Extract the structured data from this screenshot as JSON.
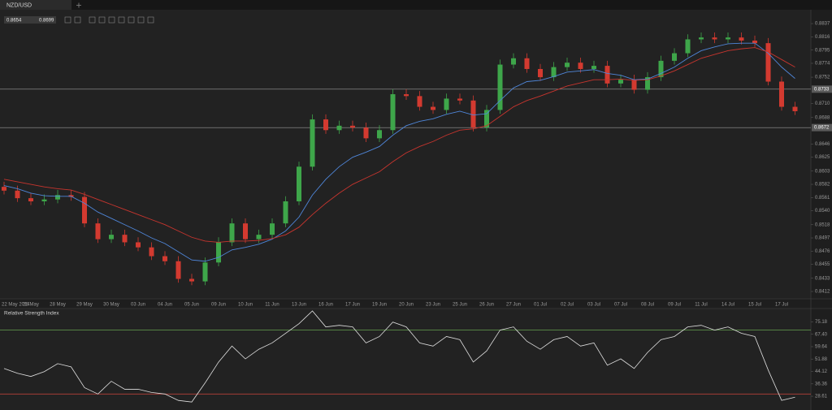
{
  "tab": "NZD/USD",
  "quote": {
    "bid": 0.8654,
    "ask": 0.8699
  },
  "chart_data": [
    {
      "type": "candlestick",
      "categories": [
        "22 May 2014",
        null,
        "26 May",
        null,
        "28 May",
        null,
        "29 May",
        null,
        "30 May",
        null,
        "03 Jun",
        null,
        "04 Jun",
        null,
        "05 Jun",
        null,
        "09 Jun",
        null,
        "10 Jun",
        null,
        "11 Jun",
        null,
        "13 Jun",
        null,
        "16 Jun",
        null,
        "17 Jun",
        null,
        "19 Jun",
        null,
        "20 Jun",
        null,
        "23 Jun",
        null,
        "25 Jun",
        null,
        "26 Jun",
        null,
        "27 Jun",
        null,
        "01 Jul",
        null,
        "02 Jul",
        null,
        "03 Jul",
        null,
        "07 Jul",
        null,
        "08 Jul",
        null,
        "09 Jul",
        null,
        "11 Jul",
        null,
        "14 Jul",
        null,
        "15 Jul",
        null,
        "17 Jul",
        null
      ],
      "open": [
        0.8578,
        0.8572,
        0.856,
        0.8555,
        0.8558,
        0.8565,
        0.8562,
        0.852,
        0.8495,
        0.8502,
        0.849,
        0.8482,
        0.8468,
        0.846,
        0.8432,
        0.8428,
        0.8458,
        0.849,
        0.852,
        0.8495,
        0.8502,
        0.852,
        0.8555,
        0.861,
        0.8685,
        0.8668,
        0.8675,
        0.8672,
        0.8655,
        0.8668,
        0.8725,
        0.8722,
        0.8705,
        0.87,
        0.8718,
        0.8715,
        0.8672,
        0.87,
        0.8772,
        0.8782,
        0.8765,
        0.8752,
        0.8768,
        0.8775,
        0.8765,
        0.877,
        0.8742,
        0.8748,
        0.8732,
        0.8752,
        0.8778,
        0.879,
        0.8812,
        0.8815,
        0.8812,
        0.8815,
        0.881,
        0.8806,
        0.8745,
        0.8705
      ],
      "high": [
        0.8586,
        0.858,
        0.8568,
        0.8566,
        0.8573,
        0.8573,
        0.857,
        0.8528,
        0.851,
        0.851,
        0.8498,
        0.849,
        0.8476,
        0.8468,
        0.844,
        0.8466,
        0.8498,
        0.8528,
        0.8528,
        0.851,
        0.8528,
        0.8563,
        0.8618,
        0.8693,
        0.8693,
        0.8683,
        0.8683,
        0.868,
        0.8676,
        0.8733,
        0.8733,
        0.873,
        0.8713,
        0.8726,
        0.8726,
        0.8723,
        0.8708,
        0.878,
        0.879,
        0.879,
        0.8773,
        0.8776,
        0.8783,
        0.8783,
        0.8778,
        0.8778,
        0.8756,
        0.8756,
        0.876,
        0.8786,
        0.8798,
        0.882,
        0.8823,
        0.8823,
        0.8823,
        0.8823,
        0.8818,
        0.8814,
        0.8753,
        0.8713
      ],
      "low": [
        0.8566,
        0.8554,
        0.8549,
        0.8549,
        0.8552,
        0.8556,
        0.8514,
        0.8489,
        0.8489,
        0.8484,
        0.8476,
        0.8462,
        0.8454,
        0.8426,
        0.8422,
        0.8422,
        0.8452,
        0.8484,
        0.8489,
        0.8489,
        0.8496,
        0.8514,
        0.8549,
        0.8604,
        0.8662,
        0.8662,
        0.8666,
        0.8649,
        0.8649,
        0.8662,
        0.8716,
        0.8699,
        0.8694,
        0.8694,
        0.8709,
        0.8666,
        0.8666,
        0.8694,
        0.8766,
        0.8759,
        0.8746,
        0.8746,
        0.8762,
        0.8759,
        0.8759,
        0.8736,
        0.8736,
        0.8726,
        0.8726,
        0.8746,
        0.8772,
        0.8784,
        0.8806,
        0.8806,
        0.8806,
        0.8804,
        0.88,
        0.8739,
        0.8699,
        0.8692
      ],
      "close": [
        0.8572,
        0.856,
        0.8555,
        0.8558,
        0.8565,
        0.8562,
        0.852,
        0.8495,
        0.8502,
        0.849,
        0.8482,
        0.8468,
        0.846,
        0.8432,
        0.8428,
        0.8458,
        0.849,
        0.852,
        0.8495,
        0.8502,
        0.852,
        0.8555,
        0.861,
        0.8685,
        0.8668,
        0.8675,
        0.8672,
        0.8655,
        0.8668,
        0.8725,
        0.8722,
        0.8705,
        0.87,
        0.8718,
        0.8715,
        0.8672,
        0.87,
        0.8772,
        0.8782,
        0.8765,
        0.8752,
        0.8768,
        0.8775,
        0.8765,
        0.877,
        0.8742,
        0.8748,
        0.8732,
        0.8752,
        0.8778,
        0.879,
        0.8812,
        0.8815,
        0.8812,
        0.8815,
        0.881,
        0.8806,
        0.8745,
        0.8705,
        0.8698
      ],
      "up_color": "#3ea64a",
      "down_color": "#d33a30",
      "lines": [
        {
          "color": "#4f86d9",
          "values": [
            0.858,
            0.8575,
            0.8568,
            0.8564,
            0.8563,
            0.8563,
            0.8552,
            0.8538,
            0.8528,
            0.8518,
            0.8508,
            0.8497,
            0.8488,
            0.8475,
            0.8462,
            0.846,
            0.8466,
            0.8478,
            0.8482,
            0.8487,
            0.8495,
            0.8508,
            0.853,
            0.8565,
            0.859,
            0.861,
            0.8625,
            0.8633,
            0.8642,
            0.866,
            0.8675,
            0.8682,
            0.8686,
            0.8693,
            0.8698,
            0.8692,
            0.8694,
            0.8715,
            0.8735,
            0.8745,
            0.8747,
            0.8753,
            0.876,
            0.8762,
            0.8764,
            0.8758,
            0.8755,
            0.8748,
            0.8749,
            0.8758,
            0.8768,
            0.8782,
            0.8794,
            0.88,
            0.8805,
            0.8806,
            0.8806,
            0.879,
            0.8768,
            0.875
          ]
        },
        {
          "color": "#c8352e",
          "values": [
            0.859,
            0.8586,
            0.8582,
            0.8578,
            0.8575,
            0.8573,
            0.8566,
            0.8558,
            0.855,
            0.8542,
            0.8534,
            0.8526,
            0.8518,
            0.8508,
            0.8498,
            0.8492,
            0.849,
            0.8492,
            0.8492,
            0.8493,
            0.8496,
            0.8502,
            0.8514,
            0.8534,
            0.8552,
            0.8568,
            0.8582,
            0.8592,
            0.8602,
            0.8618,
            0.8632,
            0.8642,
            0.865,
            0.866,
            0.8668,
            0.867,
            0.8675,
            0.869,
            0.8705,
            0.8715,
            0.8722,
            0.873,
            0.8738,
            0.8743,
            0.8748,
            0.8748,
            0.8749,
            0.8747,
            0.8748,
            0.8754,
            0.8762,
            0.8772,
            0.8782,
            0.8788,
            0.8794,
            0.8797,
            0.8799,
            0.8792,
            0.878,
            0.8768
          ]
        }
      ],
      "hlines": [
        0.8733,
        0.8672
      ],
      "ylim": [
        0.8403,
        0.8859
      ],
      "yticks": [
        0.8837,
        0.8816,
        0.8795,
        0.8774,
        0.8752,
        {
          "value": 0.871,
          "label": "0.8710"
        },
        0.8688,
        0.8646,
        0.8625,
        0.8603,
        0.8582,
        0.8561,
        {
          "value": 0.854,
          "label": "0.8540"
        },
        0.8518,
        0.8497,
        0.8476,
        0.8455,
        0.8433,
        0.8412
      ]
    },
    {
      "type": "line",
      "title": "Relative Strength Index",
      "color": "#e0e0e0",
      "values": [
        46,
        43,
        41,
        44,
        49,
        47,
        34,
        30,
        38,
        33,
        33,
        31,
        30,
        26,
        25,
        37,
        50,
        60,
        52,
        58,
        62,
        68,
        74,
        82,
        72,
        73,
        72,
        62,
        66,
        75,
        72,
        62,
        60,
        66,
        64,
        50,
        57,
        70,
        72,
        63,
        58,
        64,
        66,
        60,
        62,
        48,
        52,
        46,
        56,
        64,
        66,
        72,
        73,
        70,
        72,
        68,
        66,
        45,
        26,
        28
      ],
      "levels": [
        {
          "value": 70,
          "color": "#5c8f4a"
        },
        {
          "value": 30,
          "color": "#b7403a"
        }
      ],
      "ylim": [
        20,
        83
      ],
      "yticks": [
        75.18,
        {
          "value": 67.4,
          "label": "67.40"
        },
        59.64,
        51.88,
        44.12,
        36.36,
        28.61
      ]
    }
  ]
}
